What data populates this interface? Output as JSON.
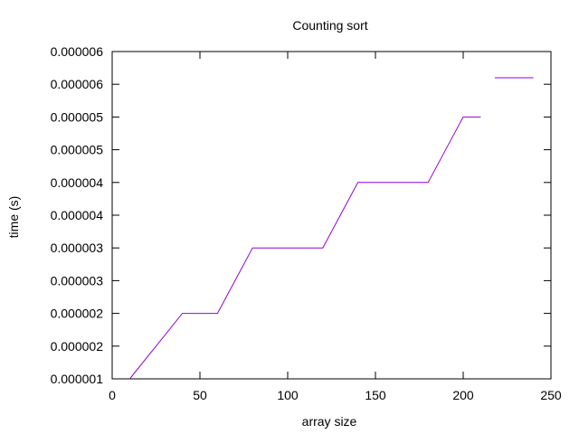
{
  "chart_data": {
    "type": "line",
    "title": "Counting sort",
    "xlabel": "array size",
    "ylabel": "time (s)",
    "xlim": [
      0,
      250
    ],
    "ylim": [
      1e-06,
      6e-06
    ],
    "grid": false,
    "legend": "none",
    "x_ticks": [
      0,
      50,
      100,
      150,
      200,
      250
    ],
    "x_tick_labels": [
      "0",
      "50",
      "100",
      "150",
      "200",
      "250"
    ],
    "y_ticks": [
      1e-06,
      1.5e-06,
      2e-06,
      2.5e-06,
      3e-06,
      3.5e-06,
      4e-06,
      4.5e-06,
      5e-06,
      5.5e-06,
      6e-06
    ],
    "y_tick_labels": [
      "0.000001",
      "0.000002",
      "0.000002",
      "0.000003",
      "0.000003",
      "0.000004",
      "0.000004",
      "0.000005",
      "0.000005",
      "0.000006",
      "0.000006"
    ],
    "series": [
      {
        "color": "#9400d3",
        "points": [
          [
            10,
            1e-06
          ],
          [
            40,
            2e-06
          ],
          [
            60,
            2e-06
          ],
          [
            80,
            3e-06
          ],
          [
            120,
            3e-06
          ],
          [
            140,
            4e-06
          ],
          [
            180,
            4e-06
          ],
          [
            200,
            5e-06
          ],
          [
            210,
            5e-06
          ]
        ]
      },
      {
        "color": "#9400d3",
        "points": [
          [
            218,
            5.6e-06
          ],
          [
            240,
            5.6e-06
          ]
        ]
      }
    ]
  }
}
